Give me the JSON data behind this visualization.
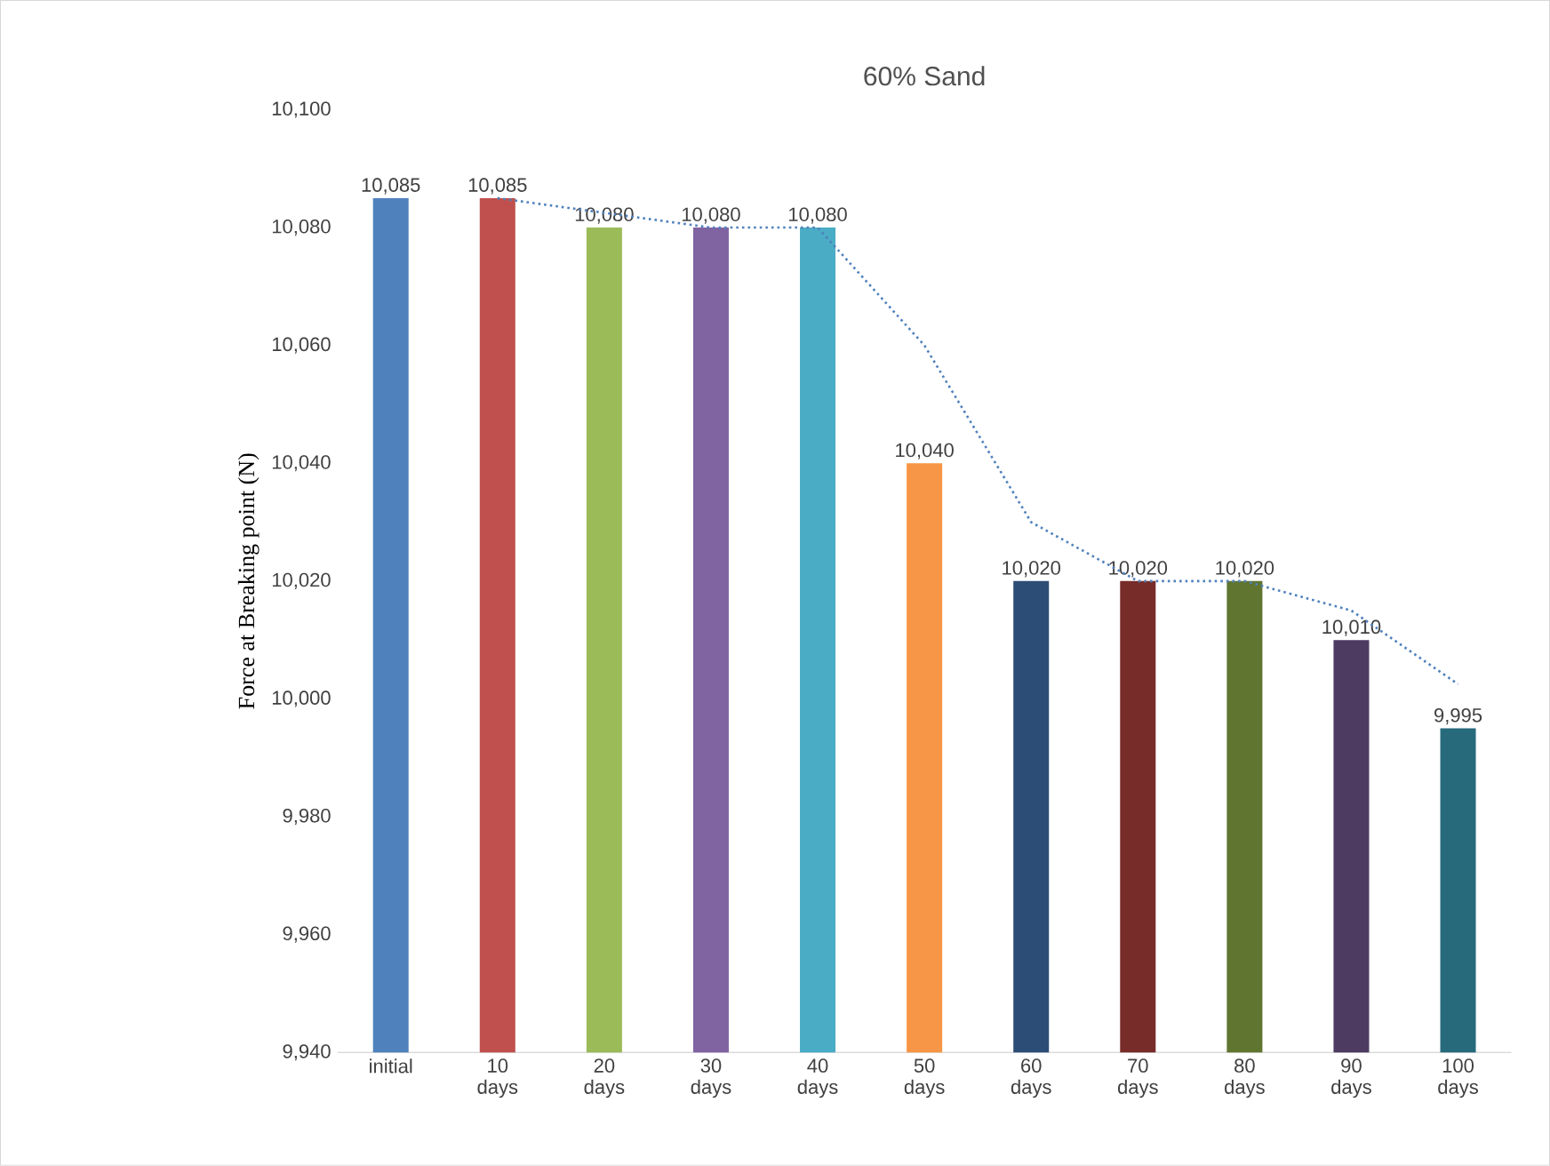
{
  "chart_data": {
    "type": "bar",
    "title": "60% Sand",
    "ylabel": "Force at Breaking point (N)",
    "categories": [
      "initial",
      "10 days",
      "20 days",
      "30 days",
      "40 days",
      "50 days",
      "60 days",
      "70 days",
      "80 days",
      "90 days",
      "100 days"
    ],
    "series": [
      {
        "values": [
          10085,
          10085,
          10080,
          10080,
          10080,
          10040,
          10020,
          10020,
          10020,
          10010,
          9995
        ],
        "colors": [
          "#4f81bd",
          "#c0504d",
          "#9bbb59",
          "#8064a2",
          "#4bacc6",
          "#f79646",
          "#2c4d75",
          "#772c2a",
          "#5f7530",
          "#4d3b62",
          "#276a7c"
        ],
        "value_labels": [
          "10,085",
          "10,085",
          "10,080",
          "10,080",
          "10,080",
          "10,040",
          "10,020",
          "10,020",
          "10,020",
          "10,010",
          "9,995"
        ]
      },
      {
        "type": "line",
        "values": [
          null,
          10085,
          10082.5,
          10080,
          10080,
          10060,
          10030,
          10020,
          10020,
          10015,
          10002.5
        ],
        "color": "#4f81bd",
        "line_style": "dotted"
      }
    ],
    "ylim": [
      9940,
      10100
    ],
    "yticks": [
      {
        "value": 9940,
        "label": "9,940"
      },
      {
        "value": 9960,
        "label": "9,960"
      },
      {
        "value": 9980,
        "label": "9,980"
      },
      {
        "value": 10000,
        "label": "10,000"
      },
      {
        "value": 10020,
        "label": "10,020"
      },
      {
        "value": 10040,
        "label": "10,040"
      },
      {
        "value": 10060,
        "label": "10,060"
      },
      {
        "value": 10080,
        "label": "10,080"
      },
      {
        "value": 10100,
        "label": "10,100"
      }
    ],
    "grid": false
  }
}
